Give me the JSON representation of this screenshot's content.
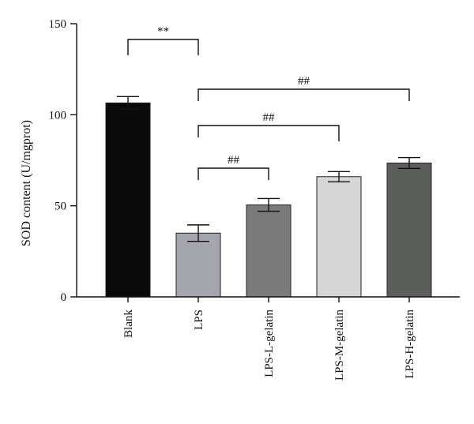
{
  "chart_data": {
    "type": "bar",
    "categories": [
      "Blank",
      "LPS",
      "LPS-L-gelatin",
      "LPS-M-gelatin",
      "LPS-H-gelatin"
    ],
    "values": [
      106.5,
      35,
      50.5,
      66,
      73.5
    ],
    "errors": [
      3.5,
      4.5,
      3.5,
      2.8,
      3
    ],
    "colors": [
      "#0a0a0a",
      "#a5a5ad",
      "#7a7a7a",
      "#d6d6d6",
      "#5c5e5c"
    ],
    "title": "",
    "xlabel": "",
    "ylabel": "SOD content (U/mgprot)",
    "ylim": [
      0,
      150
    ],
    "yticks": [
      0,
      50,
      100,
      150
    ],
    "grid": false,
    "significance": [
      {
        "from": "Blank",
        "to": "LPS",
        "label": "**"
      },
      {
        "from": "LPS",
        "to": "LPS-H-gelatin",
        "label": "##"
      },
      {
        "from": "LPS",
        "to": "LPS-M-gelatin",
        "label": "##"
      },
      {
        "from": "LPS",
        "to": "LPS-L-gelatin",
        "label": "##"
      }
    ]
  }
}
